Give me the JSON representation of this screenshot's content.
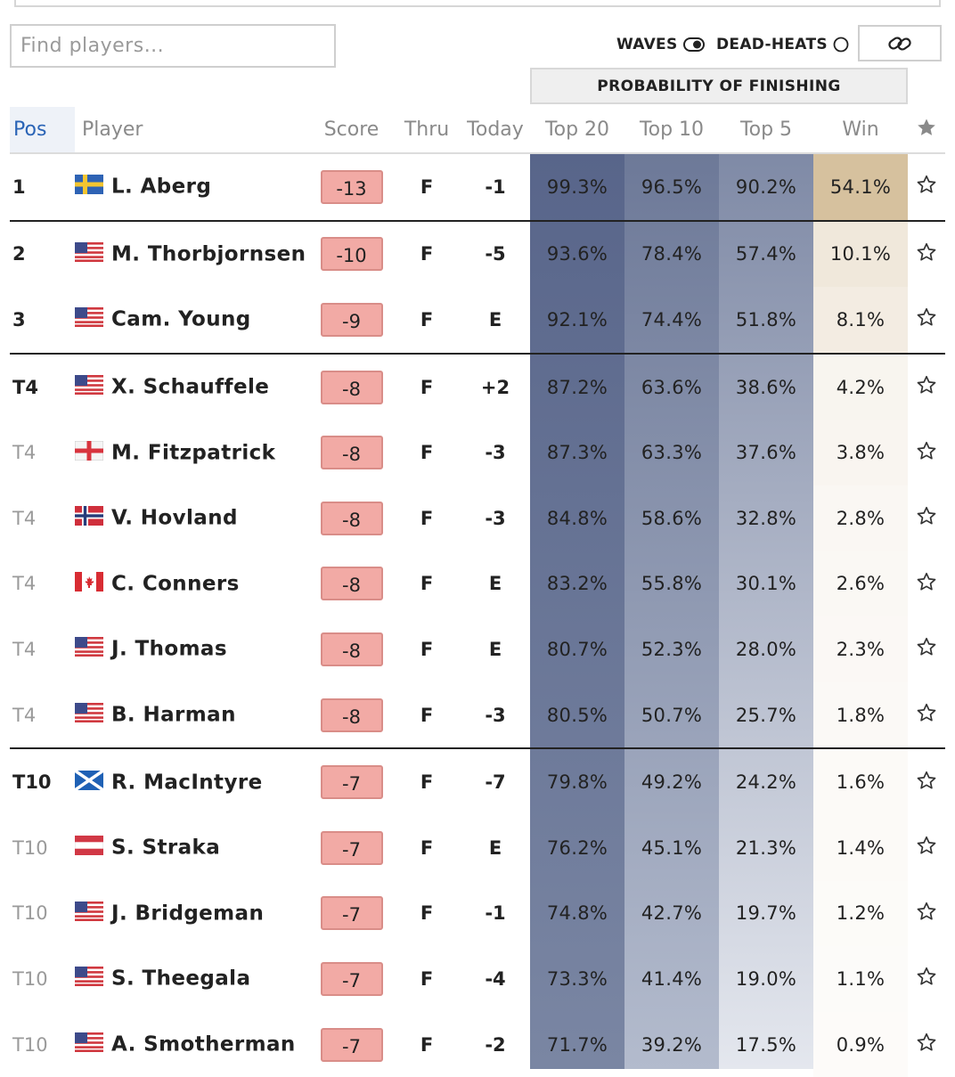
{
  "search": {
    "placeholder": "Find players..."
  },
  "controls": {
    "waves_label": "WAVES",
    "deadheats_label": "DEAD-HEATS",
    "link_icon": "link-icon"
  },
  "section_header": "PROBABILITY OF FINISHING",
  "columns": {
    "pos": "Pos",
    "player": "Player",
    "score": "Score",
    "thru": "Thru",
    "today": "Today",
    "top20": "Top 20",
    "top10": "Top 10",
    "top5": "Top 5",
    "win": "Win"
  },
  "colors": {
    "accent_blue": "#2a64b6",
    "score_fill": "#f2aaa5",
    "top20_bg": "#5e6a8c",
    "top10_bg": "#8e99b3",
    "top5_bg": "#bfc6d6",
    "win_leader_bg": "#d6c19e"
  },
  "rows": [
    {
      "pos": "1",
      "flag": "se",
      "name": "L. Aberg",
      "score": "-13",
      "thru": "F",
      "today": "-1",
      "top20": "99.3%",
      "top10": "96.5%",
      "top5": "90.2%",
      "win": "54.1%",
      "win_pct": 54.1
    },
    {
      "pos": "2",
      "flag": "us",
      "name": "M. Thorbjornsen",
      "score": "-10",
      "thru": "F",
      "today": "-5",
      "top20": "93.6%",
      "top10": "78.4%",
      "top5": "57.4%",
      "win": "10.1%",
      "win_pct": 10.1
    },
    {
      "pos": "3",
      "flag": "us",
      "name": "Cam. Young",
      "score": "-9",
      "thru": "F",
      "today": "E",
      "top20": "92.1%",
      "top10": "74.4%",
      "top5": "51.8%",
      "win": "8.1%",
      "win_pct": 8.1
    },
    {
      "pos": "T4",
      "flag": "us",
      "name": "X. Schauffele",
      "score": "-8",
      "thru": "F",
      "today": "+2",
      "top20": "87.2%",
      "top10": "63.6%",
      "top5": "38.6%",
      "win": "4.2%",
      "win_pct": 4.2
    },
    {
      "pos": "T4",
      "flag": "en",
      "name": "M. Fitzpatrick",
      "score": "-8",
      "thru": "F",
      "today": "-3",
      "top20": "87.3%",
      "top10": "63.3%",
      "top5": "37.6%",
      "win": "3.8%",
      "win_pct": 3.8
    },
    {
      "pos": "T4",
      "flag": "no",
      "name": "V. Hovland",
      "score": "-8",
      "thru": "F",
      "today": "-3",
      "top20": "84.8%",
      "top10": "58.6%",
      "top5": "32.8%",
      "win": "2.8%",
      "win_pct": 2.8
    },
    {
      "pos": "T4",
      "flag": "ca",
      "name": "C. Conners",
      "score": "-8",
      "thru": "F",
      "today": "E",
      "top20": "83.2%",
      "top10": "55.8%",
      "top5": "30.1%",
      "win": "2.6%",
      "win_pct": 2.6
    },
    {
      "pos": "T4",
      "flag": "us",
      "name": "J. Thomas",
      "score": "-8",
      "thru": "F",
      "today": "E",
      "top20": "80.7%",
      "top10": "52.3%",
      "top5": "28.0%",
      "win": "2.3%",
      "win_pct": 2.3
    },
    {
      "pos": "T4",
      "flag": "us",
      "name": "B. Harman",
      "score": "-8",
      "thru": "F",
      "today": "-3",
      "top20": "80.5%",
      "top10": "50.7%",
      "top5": "25.7%",
      "win": "1.8%",
      "win_pct": 1.8
    },
    {
      "pos": "T10",
      "flag": "sc",
      "name": "R. MacIntyre",
      "score": "-7",
      "thru": "F",
      "today": "-7",
      "top20": "79.8%",
      "top10": "49.2%",
      "top5": "24.2%",
      "win": "1.6%",
      "win_pct": 1.6
    },
    {
      "pos": "T10",
      "flag": "at",
      "name": "S. Straka",
      "score": "-7",
      "thru": "F",
      "today": "E",
      "top20": "76.2%",
      "top10": "45.1%",
      "top5": "21.3%",
      "win": "1.4%",
      "win_pct": 1.4
    },
    {
      "pos": "T10",
      "flag": "us",
      "name": "J. Bridgeman",
      "score": "-7",
      "thru": "F",
      "today": "-1",
      "top20": "74.8%",
      "top10": "42.7%",
      "top5": "19.7%",
      "win": "1.2%",
      "win_pct": 1.2
    },
    {
      "pos": "T10",
      "flag": "us",
      "name": "S. Theegala",
      "score": "-7",
      "thru": "F",
      "today": "-4",
      "top20": "73.3%",
      "top10": "41.4%",
      "top5": "19.0%",
      "win": "1.1%",
      "win_pct": 1.1
    },
    {
      "pos": "T10",
      "flag": "us",
      "name": "A. Smotherman",
      "score": "-7",
      "thru": "F",
      "today": "-2",
      "top20": "71.7%",
      "top10": "39.2%",
      "top5": "17.5%",
      "win": "0.9%",
      "win_pct": 0.9
    }
  ]
}
